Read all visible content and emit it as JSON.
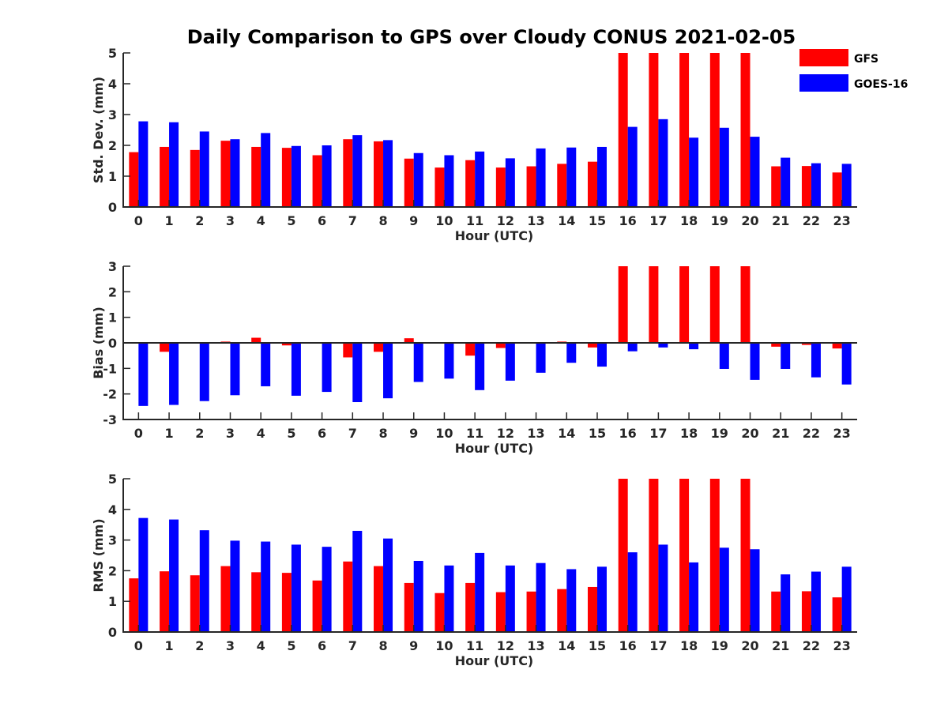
{
  "title": "Daily Comparison to GPS over Cloudy CONUS 2021-02-05",
  "legend": {
    "placement": "top-right",
    "entries": [
      {
        "name": "GFS",
        "color": "#ff0000"
      },
      {
        "name": "GOES-16",
        "color": "#0000ff"
      }
    ]
  },
  "chart_data": [
    {
      "type": "bar",
      "xlabel": "Hour (UTC)",
      "ylabel": "Std. Dev. (mm)",
      "ylim": [
        0,
        5
      ],
      "yticks": [
        "0",
        "1",
        "2",
        "3",
        "4",
        "5"
      ],
      "categories": [
        "0",
        "1",
        "2",
        "3",
        "4",
        "5",
        "6",
        "7",
        "8",
        "9",
        "10",
        "11",
        "12",
        "13",
        "14",
        "15",
        "16",
        "17",
        "18",
        "19",
        "20",
        "21",
        "22",
        "23"
      ],
      "series": [
        {
          "name": "GFS",
          "color": "#ff0000",
          "values": [
            1.78,
            1.95,
            1.85,
            2.15,
            1.95,
            1.92,
            1.68,
            2.2,
            2.13,
            1.57,
            1.28,
            1.52,
            1.28,
            1.32,
            1.4,
            1.47,
            5,
            5,
            5,
            5,
            5,
            1.32,
            1.33,
            1.12
          ]
        },
        {
          "name": "GOES-16",
          "color": "#0000ff",
          "values": [
            2.78,
            2.75,
            2.45,
            2.2,
            2.4,
            1.98,
            2.0,
            2.33,
            2.17,
            1.75,
            1.68,
            1.8,
            1.58,
            1.9,
            1.93,
            1.95,
            2.6,
            2.85,
            2.25,
            2.57,
            2.28,
            1.6,
            1.42,
            1.4
          ]
        }
      ]
    },
    {
      "type": "bar",
      "xlabel": "Hour (UTC)",
      "ylabel": "Bias (mm)",
      "ylim": [
        -3,
        3
      ],
      "yticks": [
        "-3",
        "-2",
        "-1",
        "0",
        "1",
        "2",
        "3"
      ],
      "categories": [
        "0",
        "1",
        "2",
        "3",
        "4",
        "5",
        "6",
        "7",
        "8",
        "9",
        "10",
        "11",
        "12",
        "13",
        "14",
        "15",
        "16",
        "17",
        "18",
        "19",
        "20",
        "21",
        "22",
        "23"
      ],
      "series": [
        {
          "name": "GFS",
          "color": "#ff0000",
          "values": [
            0.0,
            -0.35,
            0.0,
            0.05,
            0.2,
            -0.1,
            0.0,
            -0.57,
            -0.35,
            0.18,
            0.0,
            -0.5,
            -0.2,
            0.0,
            0.05,
            -0.18,
            3,
            3,
            3,
            3,
            3,
            -0.15,
            -0.08,
            -0.22
          ]
        },
        {
          "name": "GOES-16",
          "color": "#0000ff",
          "values": [
            -2.47,
            -2.43,
            -2.28,
            -2.05,
            -1.7,
            -2.07,
            -1.92,
            -2.32,
            -2.17,
            -1.53,
            -1.4,
            -1.85,
            -1.48,
            -1.17,
            -0.78,
            -0.93,
            -0.33,
            -0.18,
            -0.25,
            -1.02,
            -1.45,
            -1.02,
            -1.35,
            -1.63
          ]
        }
      ]
    },
    {
      "type": "bar",
      "xlabel": "Hour (UTC)",
      "ylabel": "RMS (mm)",
      "ylim": [
        0,
        5
      ],
      "yticks": [
        "0",
        "1",
        "2",
        "3",
        "4",
        "5"
      ],
      "categories": [
        "0",
        "1",
        "2",
        "3",
        "4",
        "5",
        "6",
        "7",
        "8",
        "9",
        "10",
        "11",
        "12",
        "13",
        "14",
        "15",
        "16",
        "17",
        "18",
        "19",
        "20",
        "21",
        "22",
        "23"
      ],
      "series": [
        {
          "name": "GFS",
          "color": "#ff0000",
          "values": [
            1.75,
            1.98,
            1.85,
            2.15,
            1.95,
            1.93,
            1.68,
            2.3,
            2.15,
            1.6,
            1.27,
            1.6,
            1.3,
            1.32,
            1.4,
            1.47,
            5,
            5,
            5,
            5,
            5,
            1.32,
            1.33,
            1.13
          ]
        },
        {
          "name": "GOES-16",
          "color": "#0000ff",
          "values": [
            3.72,
            3.67,
            3.32,
            2.98,
            2.95,
            2.85,
            2.78,
            3.3,
            3.05,
            2.32,
            2.17,
            2.58,
            2.17,
            2.25,
            2.05,
            2.13,
            2.6,
            2.85,
            2.27,
            2.75,
            2.7,
            1.88,
            1.97,
            2.13
          ]
        }
      ]
    }
  ]
}
